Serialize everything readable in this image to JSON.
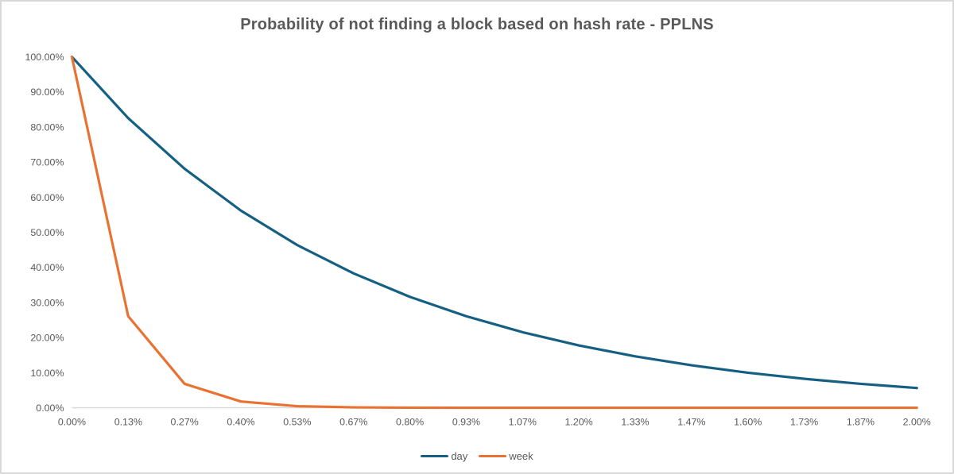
{
  "title": "Probability of not finding a block based on hash rate - PPLNS",
  "colors": {
    "day": "#156082",
    "week": "#E97132",
    "axis_line": "#d9d9d9",
    "tick_text": "#595959",
    "title_text": "#595959",
    "frame_border": "#d9d9d9"
  },
  "legend": {
    "position": "bottom",
    "items": [
      {
        "label": "day",
        "color": "#156082"
      },
      {
        "label": "week",
        "color": "#E97132"
      }
    ]
  },
  "chart_data": {
    "type": "line",
    "title": "Probability of not finding a block based on hash rate - PPLNS",
    "xlabel": "",
    "ylabel": "",
    "x": [
      0.0,
      0.13,
      0.27,
      0.4,
      0.53,
      0.67,
      0.8,
      0.93,
      1.07,
      1.2,
      1.33,
      1.47,
      1.6,
      1.73,
      1.87,
      2.0
    ],
    "x_tick_labels": [
      "0.00%",
      "0.13%",
      "0.27%",
      "0.40%",
      "0.53%",
      "0.67%",
      "0.80%",
      "0.93%",
      "1.07%",
      "1.20%",
      "1.33%",
      "1.47%",
      "1.60%",
      "1.73%",
      "1.87%",
      "2.00%"
    ],
    "y_tick_labels": [
      "100.00%",
      "90.00%",
      "80.00%",
      "70.00%",
      "60.00%",
      "50.00%",
      "40.00%",
      "30.00%",
      "20.00%",
      "10.00%",
      "0.00%"
    ],
    "ylim": [
      0,
      100
    ],
    "grid": false,
    "legend_position": "bottom",
    "series": [
      {
        "name": "day",
        "color": "#156082",
        "values": [
          100.0,
          82.52,
          68.1,
          56.19,
          46.37,
          38.29,
          31.6,
          26.08,
          21.52,
          17.76,
          14.65,
          12.09,
          9.98,
          8.24,
          6.8,
          5.61
        ]
      },
      {
        "name": "week",
        "color": "#E97132",
        "values": [
          100.0,
          26.08,
          6.8,
          1.77,
          0.46,
          0.12,
          0.03,
          0.01,
          0.0,
          0.0,
          0.0,
          0.0,
          0.0,
          0.0,
          0.0,
          0.0
        ]
      }
    ]
  }
}
